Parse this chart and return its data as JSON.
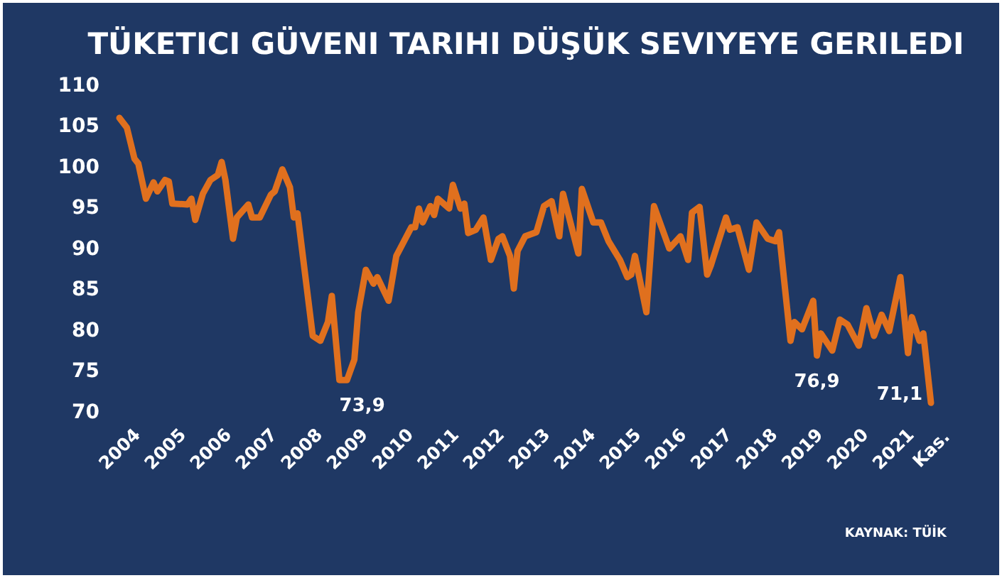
{
  "chart_data": {
    "type": "line",
    "title": "TÜKETICI GÜVENI TARIHI DÜŞÜK SEVIYEYE GERILEDI",
    "x": [
      "2004-01",
      "2004-03",
      "2004-05",
      "2004-06",
      "2004-08",
      "2004-10",
      "2004-11",
      "2005-01",
      "2005-02",
      "2005-03",
      "2005-07",
      "2005-08",
      "2005-09",
      "2005-11",
      "2006-01",
      "2006-03",
      "2006-04",
      "2006-05",
      "2006-07",
      "2006-08",
      "2006-11",
      "2006-12",
      "2007-02",
      "2007-05",
      "2007-06",
      "2007-08",
      "2007-10",
      "2007-11",
      "2007-12",
      "2008-04",
      "2008-06",
      "2008-08",
      "2008-09",
      "2008-11",
      "2009-01",
      "2009-03",
      "2009-04",
      "2009-06",
      "2009-08",
      "2009-09",
      "2009-12",
      "2010-02",
      "2010-06",
      "2010-07",
      "2010-08",
      "2010-09",
      "2010-11",
      "2010-12",
      "2011-01",
      "2011-04",
      "2011-05",
      "2011-07",
      "2011-08",
      "2011-09",
      "2011-11",
      "2012-01",
      "2012-03",
      "2012-05",
      "2012-06",
      "2012-08",
      "2012-09",
      "2012-10",
      "2012-12",
      "2013-03",
      "2013-05",
      "2013-07",
      "2013-09",
      "2013-10",
      "2014-02",
      "2014-03",
      "2014-06",
      "2014-08",
      "2014-10",
      "2015-01",
      "2015-03",
      "2015-04",
      "2015-05",
      "2015-08",
      "2015-10",
      "2016-02",
      "2016-05",
      "2016-07",
      "2016-08",
      "2016-10",
      "2016-12",
      "2017-01",
      "2017-05",
      "2017-06",
      "2017-08",
      "2017-11",
      "2018-01",
      "2018-04",
      "2018-06",
      "2018-07",
      "2018-10",
      "2018-11",
      "2019-01",
      "2019-04",
      "2019-05",
      "2019-06",
      "2019-09",
      "2019-11",
      "2020-01",
      "2020-04",
      "2020-06",
      "2020-08",
      "2020-10",
      "2020-12",
      "2021-03",
      "2021-05",
      "2021-06",
      "2021-08",
      "2021-09",
      "2021-11"
    ],
    "series": [
      {
        "color": "#e0701e",
        "values": [
          106.0,
          104.8,
          101.0,
          100.4,
          96.1,
          98.1,
          97.0,
          98.4,
          98.2,
          95.5,
          95.4,
          96.1,
          93.5,
          96.7,
          98.4,
          99.0,
          100.6,
          98.4,
          91.2,
          93.8,
          95.4,
          93.8,
          93.8,
          96.6,
          97.0,
          99.7,
          97.5,
          93.8,
          94.3,
          79.3,
          78.7,
          81.0,
          84.2,
          73.9,
          73.9,
          76.4,
          82.2,
          87.4,
          85.7,
          86.5,
          83.6,
          89.1,
          92.6,
          92.6,
          94.9,
          93.2,
          95.2,
          94.1,
          96.1,
          94.9,
          97.8,
          94.9,
          95.5,
          91.9,
          92.3,
          93.8,
          88.6,
          91.2,
          91.5,
          89.1,
          85.1,
          89.7,
          91.5,
          92.0,
          95.2,
          95.8,
          91.5,
          96.7,
          89.4,
          97.3,
          93.2,
          93.2,
          90.9,
          88.6,
          86.5,
          86.8,
          89.1,
          82.2,
          95.2,
          90.0,
          91.5,
          88.6,
          94.4,
          95.1,
          86.8,
          88.0,
          93.8,
          92.3,
          92.6,
          87.4,
          93.2,
          91.2,
          90.9,
          92.0,
          78.7,
          81.0,
          80.1,
          83.6,
          76.9,
          79.6,
          77.5,
          81.3,
          80.7,
          78.1,
          82.7,
          79.3,
          81.9,
          79.9,
          86.5,
          77.2,
          81.6,
          78.7,
          79.6,
          71.1
        ]
      }
    ],
    "xlim": [
      "2004-01",
      "2021-11"
    ],
    "xticks": [
      {
        "value": "2004-01",
        "label": "2004"
      },
      {
        "value": "2005-01",
        "label": "2005"
      },
      {
        "value": "2006-01",
        "label": "2006"
      },
      {
        "value": "2007-01",
        "label": "2007"
      },
      {
        "value": "2008-01",
        "label": "2008"
      },
      {
        "value": "2009-01",
        "label": "2009"
      },
      {
        "value": "2010-01",
        "label": "2010"
      },
      {
        "value": "2011-01",
        "label": "2011"
      },
      {
        "value": "2012-01",
        "label": "2012"
      },
      {
        "value": "2013-01",
        "label": "2013"
      },
      {
        "value": "2014-01",
        "label": "2014"
      },
      {
        "value": "2015-01",
        "label": "2015"
      },
      {
        "value": "2016-01",
        "label": "2016"
      },
      {
        "value": "2017-01",
        "label": "2017"
      },
      {
        "value": "2018-01",
        "label": "2018"
      },
      {
        "value": "2019-01",
        "label": "2019"
      },
      {
        "value": "2020-01",
        "label": "2020"
      },
      {
        "value": "2021-01",
        "label": "2021"
      },
      {
        "value": "2021-11",
        "label": "Kas."
      }
    ],
    "ylim": [
      70,
      110
    ],
    "yticks": [
      70,
      75,
      80,
      85,
      90,
      95,
      100,
      105,
      110
    ],
    "grid": false,
    "marker": "none",
    "line_style": "solid",
    "annotations": [
      {
        "text": "73,9",
        "x": "2008-11",
        "y": 73.9
      },
      {
        "text": "76,9",
        "x": "2019-05",
        "y": 76.9
      },
      {
        "text": "71,1",
        "x": "2021-11",
        "y": 71.1
      },
      "KAYNAK: TÜİK"
    ]
  }
}
